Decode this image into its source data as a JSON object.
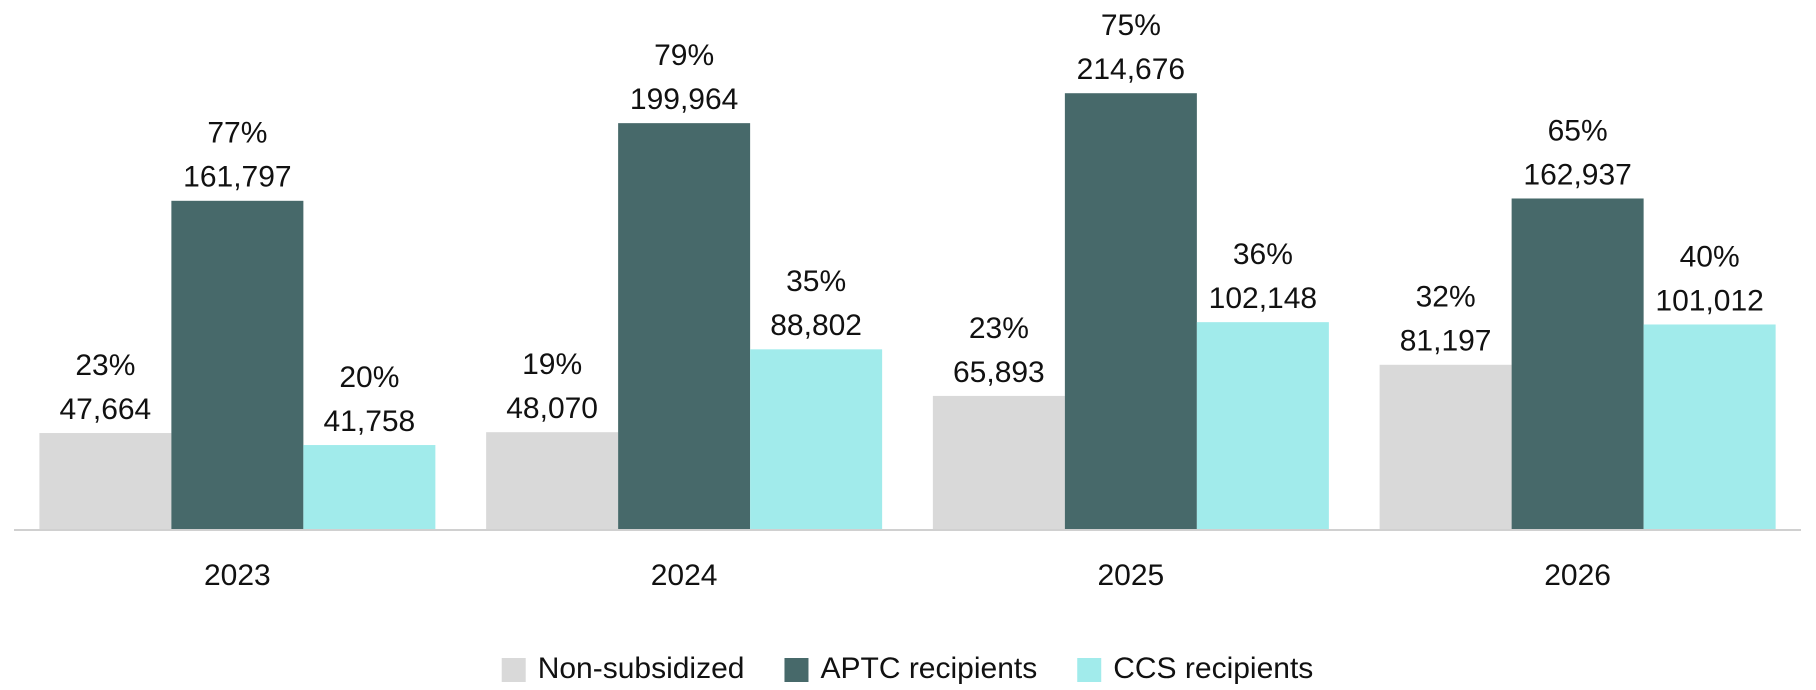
{
  "chart_data": {
    "type": "bar",
    "categories": [
      "2023",
      "2024",
      "2025",
      "2026"
    ],
    "ylim": [
      0,
      260000
    ],
    "series": [
      {
        "name": "Non-subsidized",
        "color": "#d9d9d9",
        "values": [
          47664,
          48070,
          65893,
          81197
        ],
        "value_labels": [
          "47,664",
          "48,070",
          "65,893",
          "81,197"
        ],
        "percent_labels": [
          "23%",
          "19%",
          "23%",
          "32%"
        ]
      },
      {
        "name": "APTC recipients",
        "color": "#47696a",
        "values": [
          161797,
          199964,
          214676,
          162937
        ],
        "value_labels": [
          "161,797",
          "199,964",
          "214,676",
          "162,937"
        ],
        "percent_labels": [
          "77%",
          "79%",
          "75%",
          "65%"
        ]
      },
      {
        "name": "CCS recipients",
        "color": "#a1ebeb",
        "values": [
          41758,
          88802,
          102148,
          101012
        ],
        "value_labels": [
          "41,758",
          "88,802",
          "102,148",
          "101,012"
        ],
        "percent_labels": [
          "20%",
          "35%",
          "36%",
          "40%"
        ]
      }
    ],
    "legend": "bottom"
  }
}
